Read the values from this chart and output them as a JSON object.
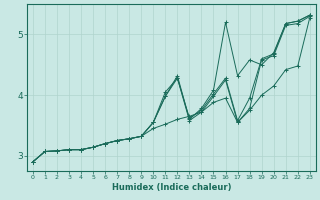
{
  "title": "",
  "xlabel": "Humidex (Indice chaleur)",
  "ylabel": "",
  "bg_color": "#c9e8e4",
  "line_color": "#1a6b5a",
  "grid_color": "#b0d4ce",
  "xlim": [
    -0.5,
    23.5
  ],
  "ylim": [
    2.75,
    5.5
  ],
  "yticks": [
    3,
    4,
    5
  ],
  "xticks": [
    0,
    1,
    2,
    3,
    4,
    5,
    6,
    7,
    8,
    9,
    10,
    11,
    12,
    13,
    14,
    15,
    16,
    17,
    18,
    19,
    20,
    21,
    22,
    23
  ],
  "lines": [
    [
      2.9,
      3.07,
      3.08,
      3.1,
      3.1,
      3.14,
      3.2,
      3.25,
      3.28,
      3.32,
      3.45,
      3.52,
      3.6,
      3.65,
      3.72,
      3.88,
      3.95,
      3.55,
      3.75,
      4.0,
      4.15,
      4.42,
      4.48,
      5.28
    ],
    [
      2.9,
      3.07,
      3.08,
      3.1,
      3.1,
      3.14,
      3.2,
      3.25,
      3.28,
      3.32,
      3.55,
      3.98,
      4.32,
      3.6,
      3.78,
      4.08,
      5.2,
      4.32,
      4.58,
      4.5,
      4.7,
      5.18,
      5.22,
      5.32
    ],
    [
      2.9,
      3.07,
      3.08,
      3.1,
      3.1,
      3.14,
      3.2,
      3.25,
      3.28,
      3.32,
      3.55,
      4.05,
      4.28,
      3.62,
      3.75,
      4.02,
      4.28,
      3.58,
      3.95,
      4.6,
      4.68,
      5.18,
      5.22,
      5.32
    ],
    [
      2.9,
      3.07,
      3.08,
      3.1,
      3.1,
      3.14,
      3.2,
      3.25,
      3.28,
      3.32,
      3.55,
      3.98,
      4.28,
      3.58,
      3.72,
      3.98,
      4.25,
      3.55,
      3.78,
      4.58,
      4.65,
      5.15,
      5.18,
      5.3
    ]
  ]
}
